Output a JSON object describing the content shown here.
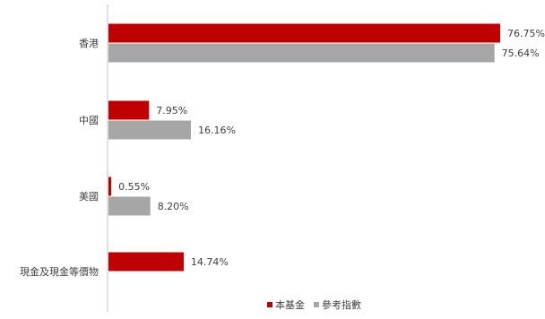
{
  "chart_data": {
    "type": "bar",
    "orientation": "horizontal",
    "categories": [
      "香港",
      "中國",
      "美國",
      "現金及現金等價物"
    ],
    "series": [
      {
        "name": "本基金",
        "color": "#c00000",
        "values": [
          76.75,
          7.95,
          0.55,
          14.74
        ],
        "labels": [
          "76.75%",
          "7.95%",
          "0.55%",
          "14.74%"
        ]
      },
      {
        "name": "參考指數",
        "color": "#a6a6a6",
        "values": [
          75.64,
          16.16,
          8.2,
          null
        ],
        "labels": [
          "75.64%",
          "16.16%",
          "8.20%",
          ""
        ]
      }
    ],
    "xlim": [
      0,
      78
    ],
    "grid": false,
    "legend_position": "bottom-right"
  }
}
